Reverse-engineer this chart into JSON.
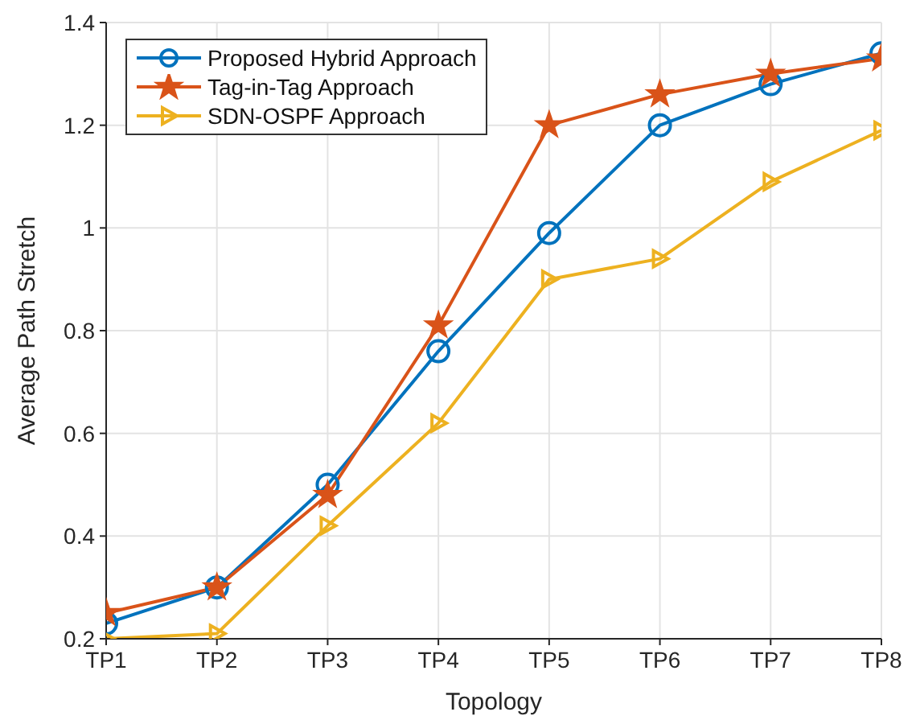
{
  "chart_data": {
    "type": "line",
    "xlabel": "Topology",
    "ylabel": "Average Path Stretch",
    "categories": [
      "TP1",
      "TP2",
      "TP3",
      "TP4",
      "TP5",
      "TP6",
      "TP7",
      "TP8"
    ],
    "ylim": [
      0.2,
      1.4
    ],
    "yticks": [
      0.2,
      0.4,
      0.6,
      0.8,
      1,
      1.2,
      1.4
    ],
    "grid": true,
    "legend": "top left",
    "line_style": "solid",
    "series": [
      {
        "name": "Proposed Hybrid Approach",
        "color": "#0072bd",
        "marker": "circle",
        "values": [
          0.23,
          0.3,
          0.5,
          0.76,
          0.99,
          1.2,
          1.28,
          1.34
        ]
      },
      {
        "name": "Tag-in-Tag Approach",
        "color": "#d95319",
        "marker": "star",
        "values": [
          0.25,
          0.3,
          0.48,
          0.81,
          1.2,
          1.26,
          1.3,
          1.33
        ]
      },
      {
        "name": "SDN-OSPF Approach",
        "color": "#edb120",
        "marker": "triangle",
        "values": [
          0.2,
          0.21,
          0.42,
          0.62,
          0.9,
          0.94,
          1.09,
          1.19
        ]
      }
    ]
  }
}
